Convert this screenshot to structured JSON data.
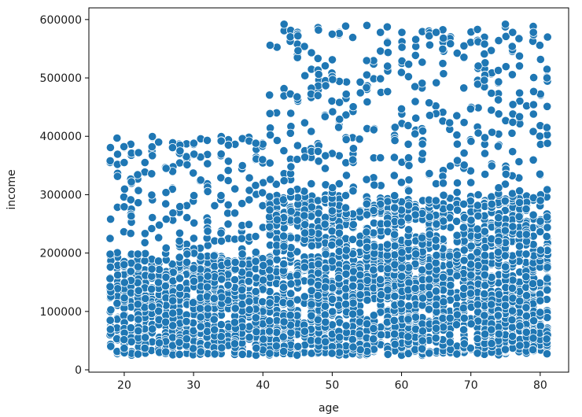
{
  "chart_data": {
    "type": "scatter",
    "title": "",
    "xlabel": "age",
    "ylabel": "income",
    "xlim": [
      14.9,
      84.1
    ],
    "ylim": [
      -4000,
      620000
    ],
    "xticks": [
      20,
      30,
      40,
      50,
      60,
      70,
      80
    ],
    "yticks": [
      0,
      100000,
      200000,
      300000,
      400000,
      500000,
      600000
    ],
    "grid": false,
    "legend": "none",
    "marker_color": "#1f77b4",
    "marker_edge": "#ffffff",
    "point_groups": [
      {
        "x_range": [
          18,
          81
        ],
        "y_range": [
          25000,
          195000
        ],
        "count": 2400,
        "description_of_region": "dense base for all ages"
      },
      {
        "x_range": [
          18,
          40
        ],
        "y_range": [
          195000,
          400000
        ],
        "count": 180
      },
      {
        "x_range": [
          41,
          81
        ],
        "y_range": [
          195000,
          300000
        ],
        "count": 700
      },
      {
        "x_range": [
          41,
          81
        ],
        "y_range": [
          300000,
          590000
        ],
        "count": 350
      }
    ],
    "points": [
      {
        "x": 18,
        "y": 358000
      },
      {
        "x": 19,
        "y": 397000
      },
      {
        "x": 19,
        "y": 352000
      },
      {
        "x": 20,
        "y": 355000
      },
      {
        "x": 21,
        "y": 322000
      },
      {
        "x": 22,
        "y": 372000
      },
      {
        "x": 23,
        "y": 355000
      },
      {
        "x": 24,
        "y": 382000
      },
      {
        "x": 25,
        "y": 390000
      },
      {
        "x": 26,
        "y": 345000
      },
      {
        "x": 28,
        "y": 375000
      },
      {
        "x": 30,
        "y": 388000
      },
      {
        "x": 32,
        "y": 393000
      },
      {
        "x": 34,
        "y": 392000
      },
      {
        "x": 35,
        "y": 385000
      },
      {
        "x": 37,
        "y": 396000
      },
      {
        "x": 38,
        "y": 392000
      },
      {
        "x": 39,
        "y": 388000
      },
      {
        "x": 43,
        "y": 592000
      },
      {
        "x": 45,
        "y": 572000
      },
      {
        "x": 48,
        "y": 582000
      },
      {
        "x": 50,
        "y": 575000
      },
      {
        "x": 55,
        "y": 590000
      },
      {
        "x": 57,
        "y": 578000
      },
      {
        "x": 60,
        "y": 578000
      },
      {
        "x": 64,
        "y": 572000
      },
      {
        "x": 65,
        "y": 578000
      },
      {
        "x": 72,
        "y": 558000
      },
      {
        "x": 75,
        "y": 592000
      },
      {
        "x": 76,
        "y": 578000
      },
      {
        "x": 79,
        "y": 578000
      },
      {
        "x": 81,
        "y": 570000
      },
      {
        "x": 18,
        "y": 258000
      },
      {
        "x": 18,
        "y": 225000
      },
      {
        "x": 81,
        "y": 415000
      },
      {
        "x": 81,
        "y": 500000
      }
    ]
  }
}
